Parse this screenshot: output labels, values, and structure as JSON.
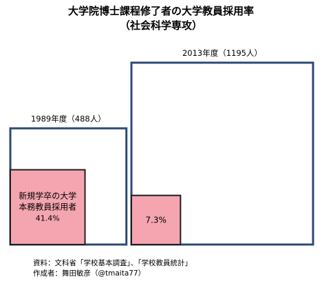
{
  "title_line1": "大学院博士課程修了者の大学教員採用率",
  "title_line2": "（社会科学専攻）",
  "chart_data": {
    "type": "area",
    "title": "大学院博士課程修了者の大学教員採用率",
    "subtitle": "（社会科学専攻）",
    "groups": [
      {
        "label": "1989年度（488人）",
        "year": "1989年度",
        "total": 488,
        "hired_rate_percent": 41.4,
        "inner_label_lines": [
          "新規学卒の大学",
          "本務教員採用者",
          "41.4%"
        ]
      },
      {
        "label": "2013年度（1195人）",
        "year": "2013年度",
        "total": 1195,
        "hired_rate_percent": 7.3,
        "inner_label_lines": [
          "7.3%"
        ]
      }
    ],
    "colors": {
      "outer_stroke": "#2c4a75",
      "inner_fill": "#f4a5b0",
      "inner_stroke": "#1f1f1f"
    }
  },
  "notes": {
    "source": "資料：文科省「学校基本調査」、「学校教員統計」",
    "author": "作成者：舞田敏彦（@tmaita77）"
  }
}
